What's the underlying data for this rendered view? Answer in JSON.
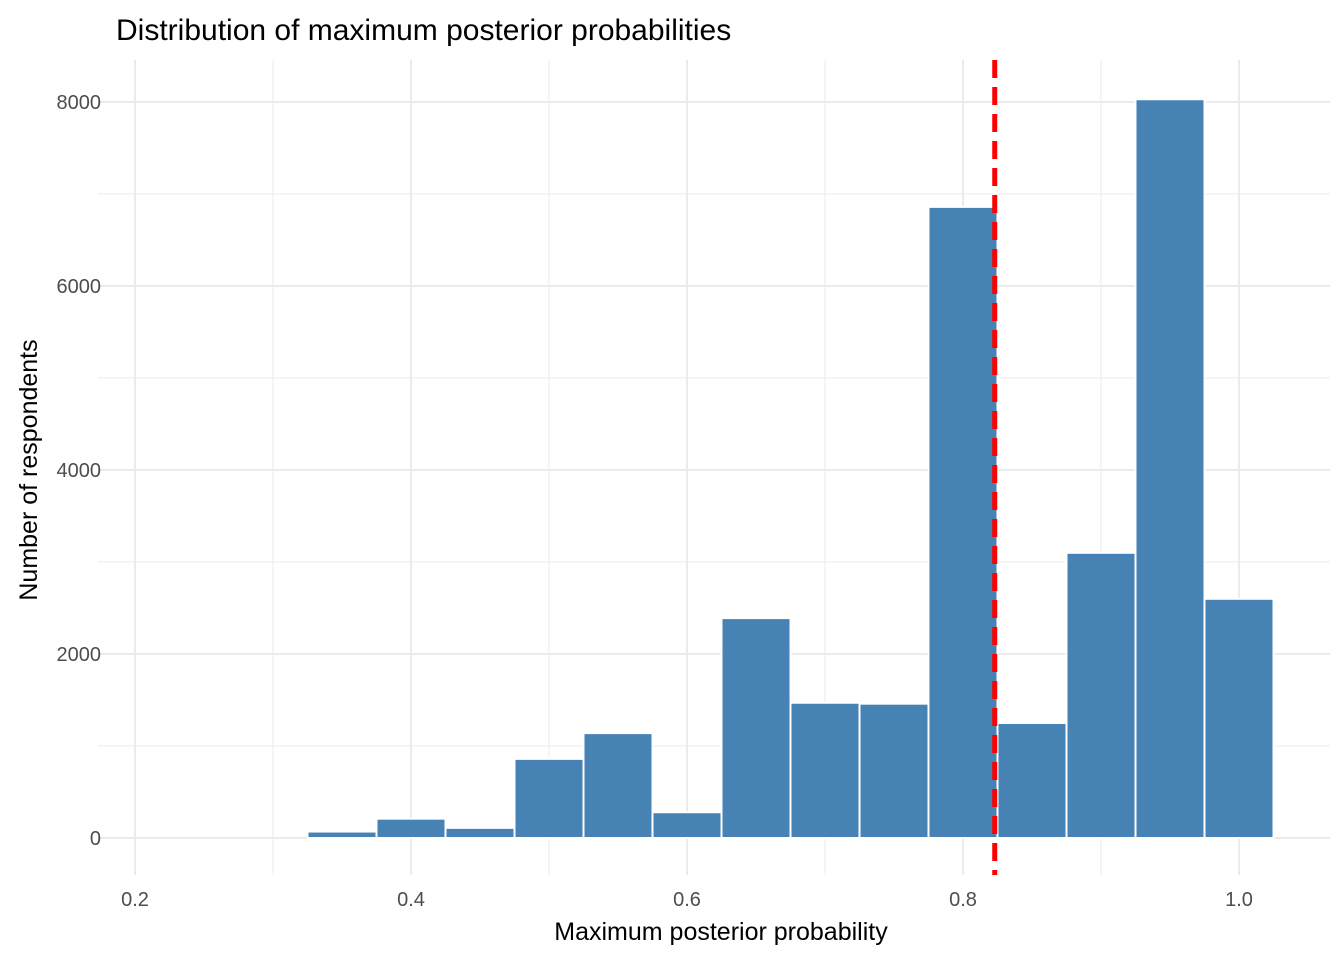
{
  "chart_data": {
    "type": "bar",
    "subtype": "histogram",
    "title": "Distribution of maximum posterior probabilities",
    "xlabel": "Maximum posterior probability",
    "ylabel": "Number of respondents",
    "xlim": [
      0.2,
      1.0
    ],
    "ylim": [
      0,
      8000
    ],
    "x_ticks": [
      "0.2",
      "0.4",
      "0.6",
      "0.8",
      "1.0"
    ],
    "y_ticks": [
      "0",
      "2000",
      "4000",
      "6000",
      "8000"
    ],
    "bin_width": 0.05,
    "bins": [
      {
        "start": 0.325,
        "end": 0.375,
        "count": 70
      },
      {
        "start": 0.375,
        "end": 0.425,
        "count": 210
      },
      {
        "start": 0.425,
        "end": 0.475,
        "count": 110
      },
      {
        "start": 0.475,
        "end": 0.525,
        "count": 860
      },
      {
        "start": 0.525,
        "end": 0.575,
        "count": 1140
      },
      {
        "start": 0.575,
        "end": 0.625,
        "count": 280
      },
      {
        "start": 0.625,
        "end": 0.675,
        "count": 2390
      },
      {
        "start": 0.675,
        "end": 0.725,
        "count": 1470
      },
      {
        "start": 0.725,
        "end": 0.775,
        "count": 1460
      },
      {
        "start": 0.775,
        "end": 0.825,
        "count": 6860
      },
      {
        "start": 0.825,
        "end": 0.875,
        "count": 1250
      },
      {
        "start": 0.875,
        "end": 0.925,
        "count": 3100
      },
      {
        "start": 0.925,
        "end": 0.975,
        "count": 8030
      },
      {
        "start": 0.975,
        "end": 1.025,
        "count": 2600
      }
    ],
    "reference_line": {
      "x": 0.823,
      "style": "dashed",
      "color": "#ff0000"
    },
    "grid": true,
    "legend": "none",
    "colors": {
      "bar_fill": "#4682b4",
      "bar_outline": "#ffffff",
      "grid": "#ebebeb"
    }
  }
}
